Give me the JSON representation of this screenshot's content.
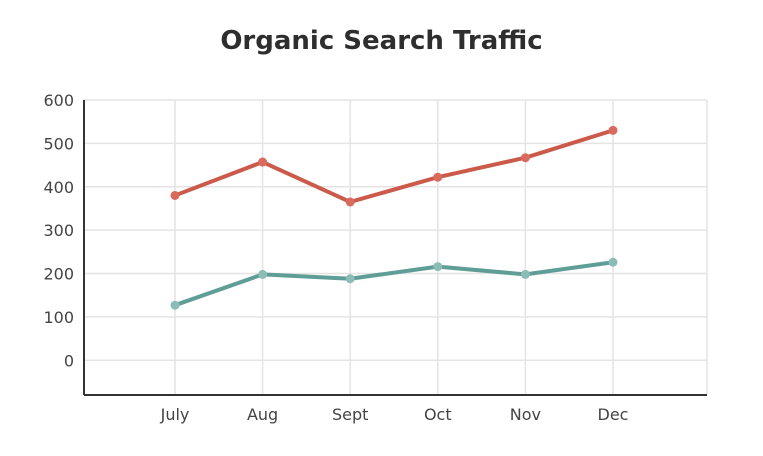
{
  "chart_data": {
    "type": "line",
    "title": "Organic Search Traffic",
    "xlabel": "",
    "ylabel": "",
    "categories": [
      "July",
      "Aug",
      "Sept",
      "Oct",
      "Nov",
      "Dec"
    ],
    "ylim": [
      -80,
      600
    ],
    "yticks": [
      0,
      100,
      200,
      300,
      400,
      500,
      600
    ],
    "grid": true,
    "legend": "none",
    "series": [
      {
        "color": "#cc5a4b",
        "marker_color": "#d96a5e",
        "values": [
          380,
          457,
          365,
          422,
          467,
          530
        ]
      },
      {
        "color": "#5e9e96",
        "marker_color": "#8bbcb5",
        "values": [
          127,
          198,
          188,
          216,
          198,
          226
        ]
      }
    ]
  }
}
